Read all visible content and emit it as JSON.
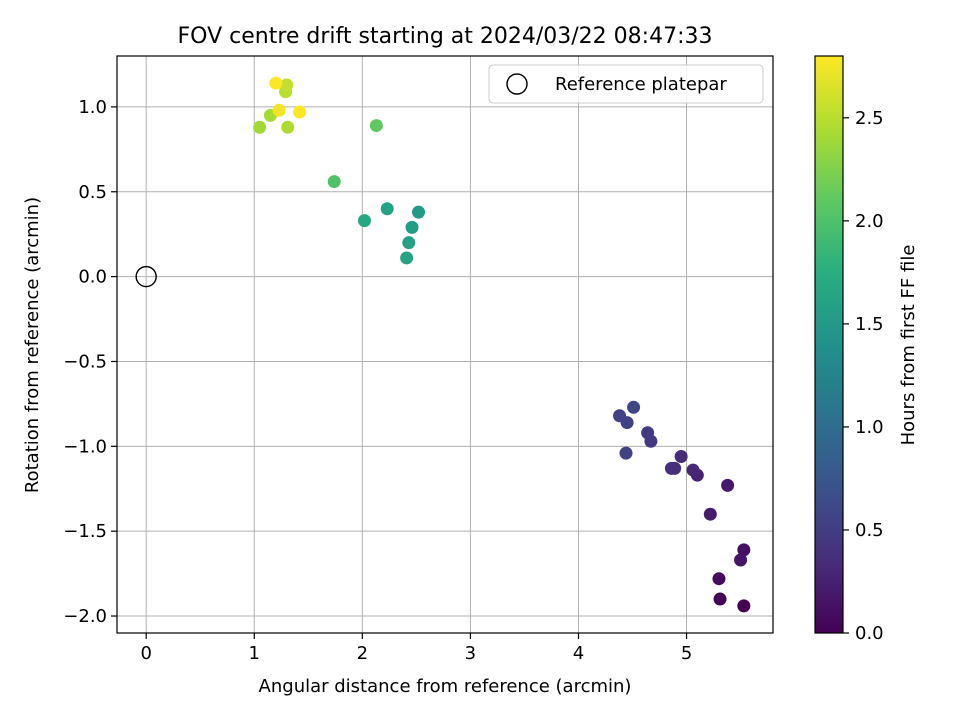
{
  "chart_data": {
    "type": "scatter",
    "title": "FOV centre drift starting at 2024/03/22 08:47:33",
    "xlabel": "Angular distance from reference (arcmin)",
    "ylabel": "Rotation from reference (arcmin)",
    "xlim": [
      -0.27,
      5.8
    ],
    "ylim": [
      -2.1,
      1.3
    ],
    "xticks": [
      0,
      1,
      2,
      3,
      4,
      5
    ],
    "xtick_labels": [
      "0",
      "1",
      "2",
      "3",
      "4",
      "5"
    ],
    "yticks": [
      -2.0,
      -1.5,
      -1.0,
      -0.5,
      0.0,
      0.5,
      1.0
    ],
    "ytick_labels": [
      "−2.0",
      "−1.5",
      "−1.0",
      "−0.5",
      "0.0",
      "0.5",
      "1.0"
    ],
    "grid": true,
    "legend": {
      "location": "top-right",
      "entries": [
        "Reference platepar"
      ]
    },
    "reference_point": {
      "x": 0.0,
      "y": 0.0,
      "label": "Reference platepar"
    },
    "colorbar": {
      "label": "Hours from first FF file",
      "colormap": "viridis",
      "range": [
        0.0,
        2.8
      ],
      "ticks": [
        0.0,
        0.5,
        1.0,
        1.5,
        2.0,
        2.5
      ],
      "tick_labels": [
        "0.0",
        "0.5",
        "1.0",
        "1.5",
        "2.0",
        "2.5"
      ]
    },
    "points": [
      {
        "x": 5.53,
        "y": -1.94,
        "c": 0.0
      },
      {
        "x": 5.31,
        "y": -1.9,
        "c": 0.04
      },
      {
        "x": 5.3,
        "y": -1.78,
        "c": 0.08
      },
      {
        "x": 5.53,
        "y": -1.61,
        "c": 0.12
      },
      {
        "x": 5.5,
        "y": -1.67,
        "c": 0.16
      },
      {
        "x": 5.22,
        "y": -1.4,
        "c": 0.22
      },
      {
        "x": 5.38,
        "y": -1.23,
        "c": 0.2
      },
      {
        "x": 5.1,
        "y": -1.17,
        "c": 0.28
      },
      {
        "x": 5.06,
        "y": -1.14,
        "c": 0.3
      },
      {
        "x": 4.95,
        "y": -1.06,
        "c": 0.34
      },
      {
        "x": 4.89,
        "y": -1.13,
        "c": 0.36
      },
      {
        "x": 4.86,
        "y": -1.13,
        "c": 0.38
      },
      {
        "x": 4.44,
        "y": -1.04,
        "c": 0.55
      },
      {
        "x": 4.67,
        "y": -0.97,
        "c": 0.45
      },
      {
        "x": 4.64,
        "y": -0.92,
        "c": 0.48
      },
      {
        "x": 4.38,
        "y": -0.82,
        "c": 0.55
      },
      {
        "x": 4.45,
        "y": -0.86,
        "c": 0.55
      },
      {
        "x": 4.51,
        "y": -0.77,
        "c": 0.58
      },
      {
        "x": 2.41,
        "y": 0.11,
        "c": 1.62
      },
      {
        "x": 2.43,
        "y": 0.2,
        "c": 1.58
      },
      {
        "x": 2.46,
        "y": 0.29,
        "c": 1.55
      },
      {
        "x": 2.52,
        "y": 0.38,
        "c": 1.52
      },
      {
        "x": 2.23,
        "y": 0.4,
        "c": 1.6
      },
      {
        "x": 2.02,
        "y": 0.33,
        "c": 1.68
      },
      {
        "x": 1.74,
        "y": 0.56,
        "c": 2.0
      },
      {
        "x": 2.13,
        "y": 0.89,
        "c": 2.1
      },
      {
        "x": 1.05,
        "y": 0.88,
        "c": 2.4
      },
      {
        "x": 1.31,
        "y": 0.88,
        "c": 2.45
      },
      {
        "x": 1.15,
        "y": 0.95,
        "c": 2.42
      },
      {
        "x": 1.29,
        "y": 1.09,
        "c": 2.5
      },
      {
        "x": 1.3,
        "y": 1.13,
        "c": 2.55
      },
      {
        "x": 1.23,
        "y": 0.98,
        "c": 2.75
      },
      {
        "x": 1.42,
        "y": 0.97,
        "c": 2.8
      },
      {
        "x": 1.2,
        "y": 1.14,
        "c": 2.8
      }
    ]
  }
}
